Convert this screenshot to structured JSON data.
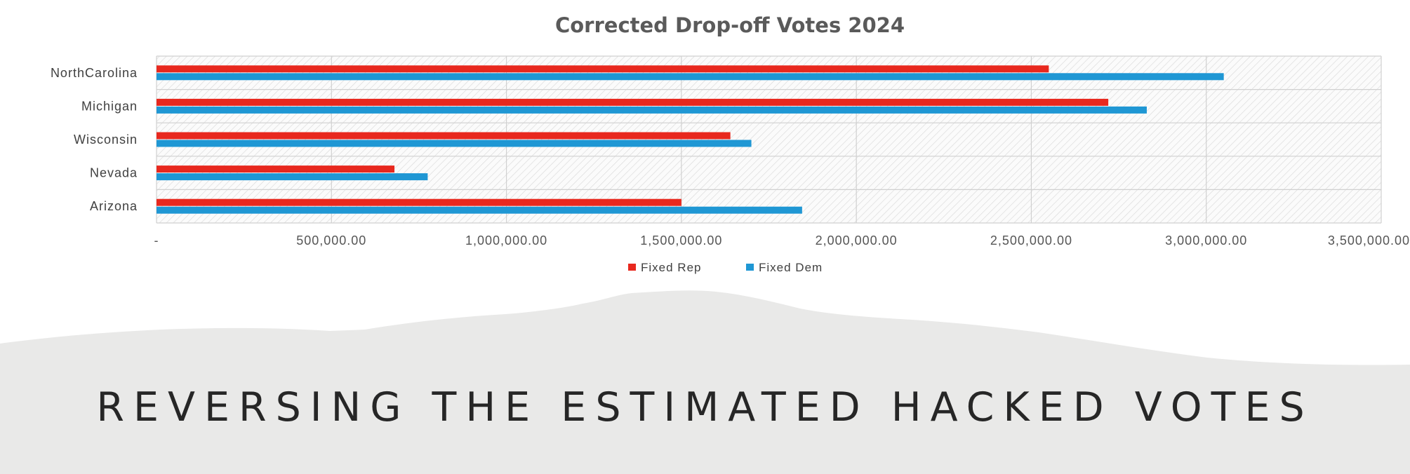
{
  "chart_data": {
    "type": "bar",
    "orientation": "horizontal",
    "title": "Corrected Drop-off Votes 2024",
    "categories": [
      "NorthCarolina",
      "Michigan",
      "Wisconsin",
      "Nevada",
      "Arizona"
    ],
    "series": [
      {
        "name": "Fixed Rep",
        "color": "#e8281e",
        "values": [
          2550000,
          2720000,
          1640000,
          680000,
          1500000
        ]
      },
      {
        "name": "Fixed Dem",
        "color": "#1f97d4",
        "values": [
          3050000,
          2830000,
          1700000,
          775000,
          1845000
        ]
      }
    ],
    "xlim": [
      0,
      3500000
    ],
    "xticks": [
      0,
      500000,
      1000000,
      1500000,
      2000000,
      2500000,
      3000000,
      3500000
    ],
    "xtick_labels": [
      "-",
      "500,000.00",
      "1,000,000.00",
      "1,500,000.00",
      "2,000,000.00",
      "2,500,000.00",
      "3,000,000.00",
      "3,500,000.00"
    ],
    "legend_position": "bottom",
    "grid": true,
    "xlabel": "",
    "ylabel": ""
  },
  "banner": {
    "text": "REVERSING THE ESTIMATED HACKED VOTES"
  }
}
